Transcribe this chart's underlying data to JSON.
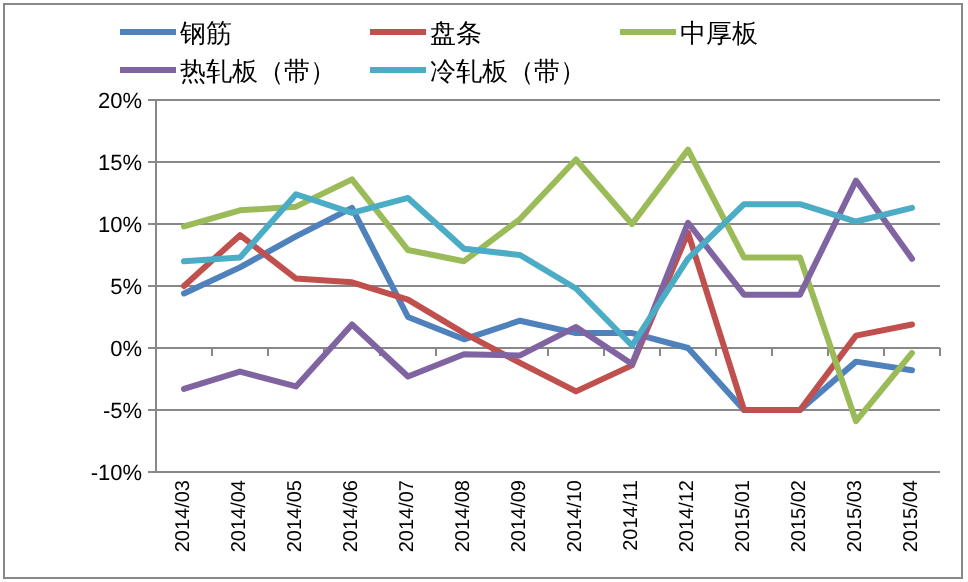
{
  "chart_data": {
    "type": "line",
    "categories": [
      "2014/03",
      "2014/04",
      "2014/05",
      "2014/06",
      "2014/07",
      "2014/08",
      "2014/09",
      "2014/10",
      "2014/11",
      "2014/12",
      "2015/01",
      "2015/02",
      "2015/03",
      "2015/04"
    ],
    "series": [
      {
        "name": "钢筋",
        "color": "#4f81bd",
        "values": [
          4.4,
          6.5,
          9,
          11.3,
          2.5,
          0.7,
          2.2,
          1.2,
          1.2,
          0,
          -5,
          -5,
          -1.1,
          -1.8
        ]
      },
      {
        "name": "盘条",
        "color": "#c0504d",
        "values": [
          5.0,
          9.1,
          5.6,
          5.3,
          3.9,
          1.2,
          -1.2,
          -3.5,
          -1.4,
          9.3,
          -5,
          -5,
          1.0,
          1.9
        ]
      },
      {
        "name": "中厚板",
        "color": "#9bbb59",
        "values": [
          9.8,
          11.1,
          11.4,
          13.6,
          7.9,
          7.0,
          10.4,
          15.2,
          10.0,
          16.0,
          7.3,
          7.3,
          -5.9,
          -0.4
        ]
      },
      {
        "name": "热轧板（带）",
        "color": "#8064a2",
        "values": [
          -3.3,
          -1.9,
          -3.1,
          1.9,
          -2.3,
          -0.5,
          -0.6,
          1.7,
          -1.3,
          10.1,
          4.3,
          4.3,
          13.5,
          7.2
        ]
      },
      {
        "name": "冷轧板（带）",
        "color": "#4bacc6",
        "values": [
          7.0,
          7.3,
          12.4,
          10.9,
          12.1,
          8.0,
          7.5,
          4.8,
          0.2,
          7.2,
          11.6,
          11.6,
          10.2,
          11.3
        ]
      }
    ],
    "ylim": [
      -10,
      20
    ],
    "yticks": [
      {
        "value": -10,
        "label": "-10%"
      },
      {
        "value": -5,
        "label": "-5%"
      },
      {
        "value": 0,
        "label": "0%"
      },
      {
        "value": 5,
        "label": "5%"
      },
      {
        "value": 10,
        "label": "10%"
      },
      {
        "value": 15,
        "label": "15%"
      },
      {
        "value": 20,
        "label": "20%"
      }
    ],
    "grid": "y",
    "legend": "top",
    "marker": "none",
    "line_style": "solid"
  }
}
